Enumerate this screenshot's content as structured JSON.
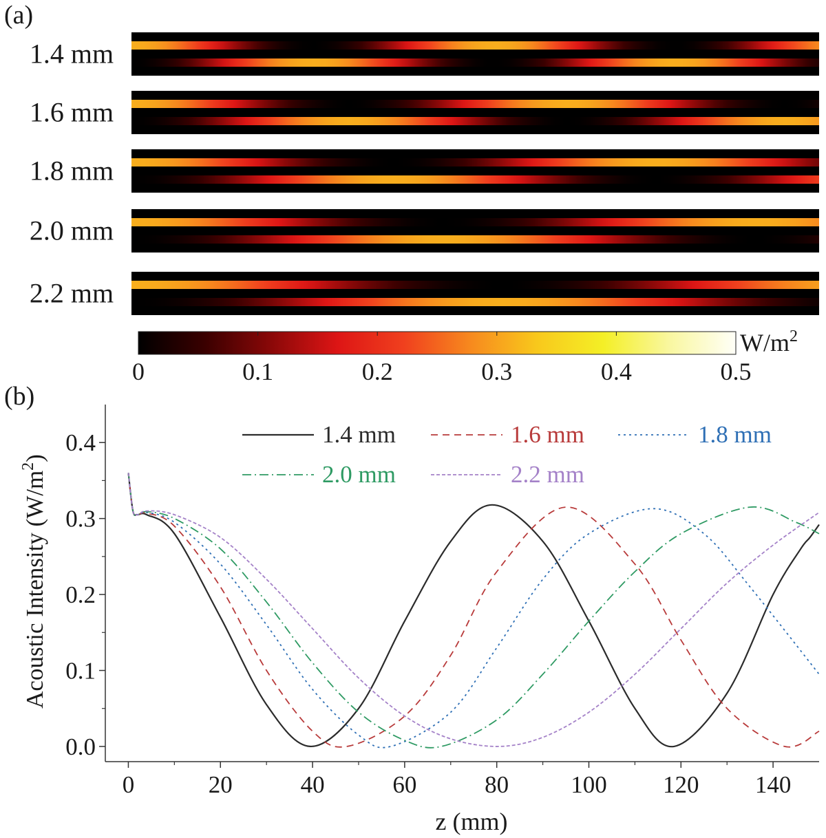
{
  "panel_a_label": "(a)",
  "panel_b_label": "(b)",
  "colorbar": {
    "unit": "W/m",
    "unit_exp": "2",
    "ticks": [
      "0",
      "0.1",
      "0.2",
      "0.3",
      "0.4",
      "0.5"
    ],
    "min": 0,
    "max": 0.5,
    "stops": [
      "#000000",
      "#3a0000",
      "#8a0808",
      "#dd1515",
      "#f0401e",
      "#f7891e",
      "#f8c81c",
      "#f4ef26",
      "#f9f7a0",
      "#fffff8"
    ]
  },
  "heatmaps": [
    {
      "label": "1.4 mm",
      "period_mm": 79
    },
    {
      "label": "1.6 mm",
      "period_mm": 95
    },
    {
      "label": "1.8 mm",
      "period_mm": 114
    },
    {
      "label": "2.0 mm",
      "period_mm": 136
    },
    {
      "label": "2.2 mm",
      "period_mm": 161
    }
  ],
  "chart_data": {
    "type": "line",
    "xlabel": "z (mm)",
    "ylabel": "Acoustic Intensity (W/m",
    "ylabel_exp": "2",
    "ylabel_end": ")",
    "xlim": [
      -5,
      150
    ],
    "ylim": [
      -0.02,
      0.45
    ],
    "xticks": [
      0,
      20,
      40,
      60,
      80,
      100,
      120,
      140
    ],
    "yticks": [
      0.0,
      0.1,
      0.2,
      0.3,
      0.4
    ],
    "ytick_labels": [
      "0.0",
      "0.1",
      "0.2",
      "0.3",
      "0.4"
    ],
    "legend_position": "top",
    "series": [
      {
        "name": "1.4 mm",
        "color": "#2b2b2b",
        "dash": "",
        "width": 2.2,
        "x": [
          0,
          1,
          2,
          4,
          10,
          20,
          30,
          39.5,
          50,
          60,
          70,
          79,
          90,
          100,
          110,
          118.5,
          130,
          140,
          146,
          148,
          150
        ],
        "y": [
          0.36,
          0.31,
          0.305,
          0.305,
          0.28,
          0.17,
          0.055,
          0.0,
          0.05,
          0.165,
          0.27,
          0.318,
          0.27,
          0.165,
          0.05,
          0.0,
          0.07,
          0.2,
          0.26,
          0.275,
          0.292
        ]
      },
      {
        "name": "1.6 mm",
        "color": "#b83a3a",
        "dash": "10,7",
        "width": 1.8,
        "x": [
          0,
          1,
          2,
          4,
          10,
          20,
          30,
          40,
          47.5,
          60,
          70,
          80,
          95,
          110,
          120,
          130,
          142.5,
          150
        ],
        "y": [
          0.36,
          0.31,
          0.305,
          0.307,
          0.29,
          0.21,
          0.1,
          0.02,
          0.0,
          0.04,
          0.12,
          0.23,
          0.315,
          0.24,
          0.14,
          0.05,
          0.0,
          0.02
        ]
      },
      {
        "name": "1.8 mm",
        "color": "#2e6fb5",
        "dash": "3,5",
        "width": 1.8,
        "x": [
          0,
          1,
          2,
          4,
          10,
          20,
          30,
          40,
          50,
          57,
          70,
          80,
          90,
          100,
          114,
          125,
          135,
          150
        ],
        "y": [
          0.36,
          0.31,
          0.305,
          0.308,
          0.295,
          0.24,
          0.16,
          0.075,
          0.015,
          0.0,
          0.045,
          0.13,
          0.22,
          0.28,
          0.313,
          0.28,
          0.21,
          0.095
        ]
      },
      {
        "name": "2.0 mm",
        "color": "#2e9a63",
        "dash": "13,5,2,5",
        "width": 1.8,
        "x": [
          0,
          1,
          2,
          4,
          10,
          20,
          30,
          40,
          50,
          60,
          68,
          80,
          90,
          100,
          110,
          120,
          135,
          145,
          150
        ],
        "y": [
          0.36,
          0.31,
          0.305,
          0.309,
          0.3,
          0.26,
          0.19,
          0.11,
          0.045,
          0.008,
          0.0,
          0.035,
          0.095,
          0.165,
          0.23,
          0.28,
          0.315,
          0.295,
          0.28
        ]
      },
      {
        "name": "2.2 mm",
        "color": "#a481c8",
        "dash": "5,3",
        "width": 1.8,
        "x": [
          0,
          1,
          2,
          4,
          10,
          20,
          30,
          40,
          50,
          60,
          70,
          80.5,
          90,
          100,
          110,
          120,
          130,
          140,
          150
        ],
        "y": [
          0.36,
          0.31,
          0.305,
          0.31,
          0.305,
          0.275,
          0.22,
          0.155,
          0.09,
          0.04,
          0.01,
          0.0,
          0.012,
          0.045,
          0.095,
          0.155,
          0.215,
          0.265,
          0.308
        ]
      }
    ]
  }
}
